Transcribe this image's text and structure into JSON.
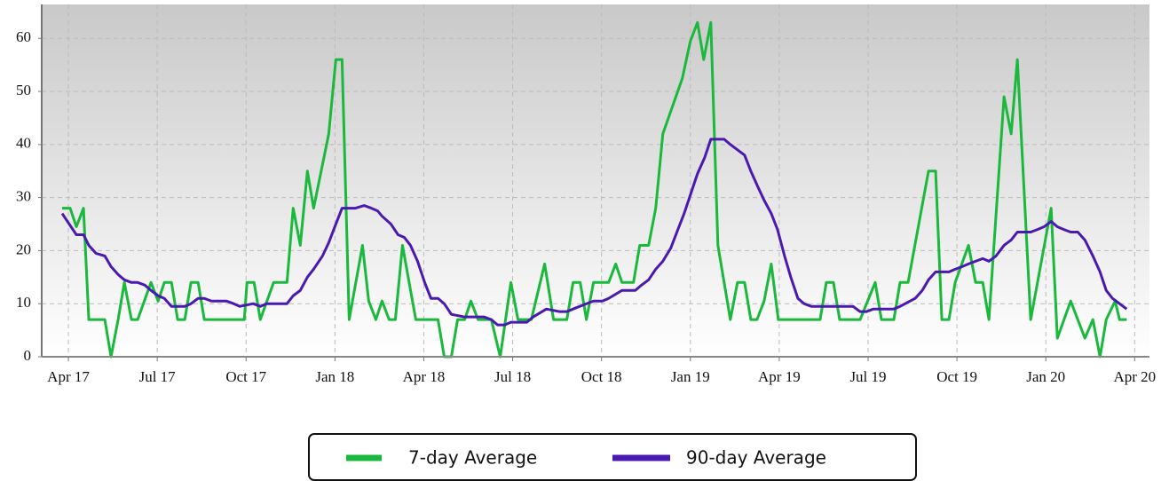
{
  "chart_data": {
    "type": "line",
    "xlim": [
      -0.9,
      36.5
    ],
    "ylim": [
      0,
      66.4
    ],
    "xticks": [
      {
        "value": 0,
        "label": "Apr 17"
      },
      {
        "value": 3,
        "label": "Jul 17"
      },
      {
        "value": 6,
        "label": "Oct 17"
      },
      {
        "value": 9,
        "label": "Jan 18"
      },
      {
        "value": 12,
        "label": "Apr 18"
      },
      {
        "value": 15,
        "label": "Jul 18"
      },
      {
        "value": 18,
        "label": "Oct 18"
      },
      {
        "value": 21,
        "label": "Jan 19"
      },
      {
        "value": 24,
        "label": "Apr 19"
      },
      {
        "value": 27,
        "label": "Jul 19"
      },
      {
        "value": 30,
        "label": "Oct 19"
      },
      {
        "value": 33,
        "label": "Jan 20"
      },
      {
        "value": 36,
        "label": "Apr 20"
      }
    ],
    "yticks": [
      0,
      10,
      20,
      30,
      40,
      50,
      60
    ],
    "grid": true,
    "legend": "bottom",
    "series": [
      {
        "name": "7-day Average",
        "color": "#1ab83c",
        "x": [
          -0.21,
          0.06,
          0.27,
          0.51,
          0.69,
          1.23,
          1.44,
          1.68,
          1.89,
          2.13,
          2.34,
          2.79,
          3.03,
          3.24,
          3.48,
          3.69,
          3.93,
          4.14,
          4.38,
          4.59,
          5.94,
          6.03,
          6.27,
          6.48,
          6.93,
          7.38,
          7.59,
          7.83,
          8.07,
          8.28,
          8.79,
          9.03,
          9.24,
          9.48,
          9.93,
          10.14,
          10.38,
          10.59,
          10.83,
          11.04,
          11.28,
          11.73,
          12.48,
          12.69,
          12.93,
          13.14,
          13.38,
          13.59,
          13.83,
          14.28,
          14.58,
          14.94,
          15.18,
          15.63,
          16.08,
          16.38,
          16.83,
          17.04,
          17.28,
          17.49,
          17.73,
          18.24,
          18.48,
          18.69,
          19.08,
          19.29,
          19.59,
          19.83,
          20.07,
          20.73,
          21.0,
          21.24,
          21.45,
          21.69,
          21.93,
          22.35,
          22.59,
          22.83,
          23.04,
          23.25,
          23.49,
          23.73,
          23.97,
          25.38,
          25.59,
          25.83,
          26.04,
          26.73,
          27.24,
          27.45,
          27.87,
          28.08,
          28.35,
          29.04,
          29.28,
          29.49,
          29.73,
          29.94,
          30.39,
          30.63,
          30.87,
          31.08,
          31.59,
          31.83,
          32.04,
          32.49,
          33.18,
          33.39,
          33.84,
          34.32,
          34.59,
          34.83,
          35.04,
          35.34,
          35.49,
          35.73
        ],
        "values": [
          28,
          28,
          24.5,
          28,
          7,
          7,
          0,
          7,
          14,
          7,
          7,
          14,
          10.5,
          14,
          14,
          7,
          7,
          14,
          14,
          7,
          7,
          14,
          14,
          7,
          14,
          14,
          28,
          21,
          35,
          28,
          42,
          56,
          56,
          7,
          21,
          10.5,
          7,
          10.5,
          7,
          7,
          21,
          7,
          7,
          0,
          0,
          7,
          7,
          10.5,
          7,
          7,
          0,
          14,
          7,
          7,
          17.5,
          7,
          7,
          14,
          14,
          7,
          14,
          14,
          17.5,
          14,
          14,
          21,
          21,
          28,
          42,
          52.5,
          59.5,
          63,
          56,
          63,
          21,
          7,
          14,
          14,
          7,
          7,
          10.5,
          17.5,
          7,
          7,
          14,
          14,
          7,
          7,
          14,
          7,
          7,
          14,
          14,
          35,
          35,
          7,
          7,
          14,
          21,
          14,
          14,
          7,
          49,
          42,
          56,
          7,
          28,
          3.5,
          10.5,
          3.5,
          7,
          0,
          7,
          10.5,
          7,
          7
        ]
      },
      {
        "name": "90-day Average",
        "color": "#4a1ab0",
        "x": [
          -0.21,
          0.03,
          0.27,
          0.51,
          0.69,
          0.93,
          1.23,
          1.44,
          1.68,
          1.89,
          2.13,
          2.34,
          2.58,
          2.79,
          3.03,
          3.24,
          3.48,
          3.93,
          4.14,
          4.38,
          4.59,
          4.83,
          5.34,
          5.58,
          5.79,
          6.24,
          6.48,
          6.69,
          6.93,
          7.38,
          7.59,
          7.83,
          8.07,
          8.28,
          8.58,
          8.79,
          9.03,
          9.24,
          9.48,
          9.69,
          9.99,
          10.23,
          10.44,
          10.59,
          10.89,
          11.13,
          11.34,
          11.55,
          11.79,
          12.03,
          12.24,
          12.48,
          12.69,
          12.93,
          13.38,
          13.83,
          14.04,
          14.28,
          14.49,
          14.73,
          14.94,
          15.18,
          15.48,
          15.69,
          16.14,
          16.59,
          16.83,
          17.04,
          17.49,
          17.73,
          18.03,
          18.24,
          18.69,
          18.93,
          19.14,
          19.35,
          19.59,
          19.83,
          20.07,
          20.34,
          20.58,
          20.79,
          21.03,
          21.24,
          21.48,
          21.69,
          21.93,
          22.14,
          22.35,
          22.59,
          22.83,
          23.04,
          23.28,
          23.49,
          23.73,
          23.94,
          24.18,
          24.39,
          24.63,
          24.84,
          25.08,
          25.35,
          25.59,
          26.04,
          26.49,
          26.73,
          26.94,
          27.18,
          27.39,
          27.63,
          27.87,
          28.08,
          28.59,
          28.83,
          29.04,
          29.28,
          29.73,
          29.94,
          30.18,
          30.39,
          30.63,
          30.87,
          31.08,
          31.32,
          31.59,
          31.83,
          32.04,
          32.49,
          32.73,
          32.94,
          33.18,
          33.39,
          33.6,
          33.84,
          34.08,
          34.32,
          34.59,
          34.83,
          35.04,
          35.25,
          35.49,
          35.73
        ],
        "values": [
          27,
          25,
          23,
          23,
          21,
          19.5,
          19,
          17,
          15.5,
          14.5,
          14,
          14,
          13.5,
          12.5,
          11.5,
          11,
          9.5,
          9.5,
          10,
          11,
          11,
          10.5,
          10.5,
          10,
          9.5,
          10,
          9.5,
          10,
          10,
          10,
          11.5,
          12.5,
          15,
          16.5,
          19,
          21.5,
          25,
          28,
          28,
          28,
          28.5,
          28,
          27.5,
          26.5,
          25,
          23,
          22.5,
          21,
          18,
          14,
          11,
          11,
          10,
          8,
          7.5,
          7.5,
          7.5,
          7,
          6,
          6,
          6.5,
          6.5,
          6.5,
          7.5,
          9,
          8.5,
          8.5,
          9,
          10,
          10.5,
          10.5,
          11,
          12.5,
          12.5,
          12.5,
          13.5,
          14.5,
          16.5,
          18,
          20.5,
          24,
          27,
          31,
          34.5,
          37.5,
          41,
          41,
          41,
          40,
          39,
          38,
          35,
          32,
          29.5,
          27,
          24,
          19,
          15,
          11,
          10,
          9.5,
          9.5,
          9.5,
          9.5,
          9.5,
          8.5,
          8.5,
          9,
          9,
          9,
          9,
          9.5,
          11,
          12.5,
          14.5,
          16,
          16,
          16.5,
          17,
          17.5,
          18,
          18.5,
          18,
          19,
          21,
          22,
          23.5,
          23.5,
          24,
          24.5,
          25.5,
          24.5,
          24,
          23.5,
          23.5,
          22,
          19,
          16,
          12.5,
          11,
          10,
          9
        ]
      }
    ]
  }
}
